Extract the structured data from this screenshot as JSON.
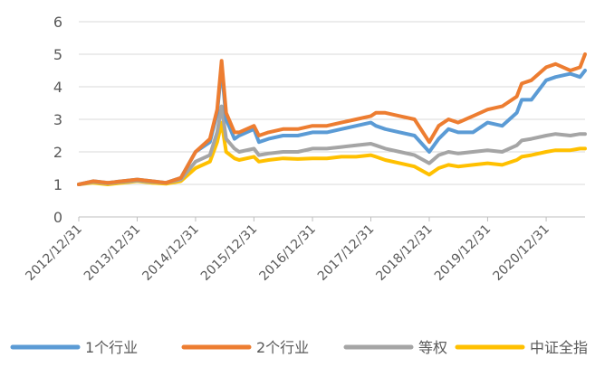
{
  "chart_data": {
    "type": "line",
    "title": "",
    "xlabel": "",
    "ylabel": "",
    "ylim": [
      0,
      6
    ],
    "yticks": [
      0,
      1,
      2,
      3,
      4,
      5,
      6
    ],
    "grid": "horizontal",
    "legend_position": "bottom",
    "x_tick_labels": [
      "2012/12/31",
      "2013/12/31",
      "2014/12/31",
      "2015/12/31",
      "2016/12/31",
      "2017/12/31",
      "2018/12/31",
      "2019/12/31",
      "2020/12/31"
    ],
    "x": [
      "2012/12/31",
      "2013/03/31",
      "2013/06/30",
      "2013/09/30",
      "2013/12/31",
      "2014/03/31",
      "2014/06/30",
      "2014/09/30",
      "2014/12/31",
      "2015/03/31",
      "2015/05/15",
      "2015/06/12",
      "2015/07/10",
      "2015/08/31",
      "2015/09/30",
      "2015/12/31",
      "2016/01/31",
      "2016/03/31",
      "2016/06/30",
      "2016/09/30",
      "2016/12/31",
      "2017/03/31",
      "2017/06/30",
      "2017/09/30",
      "2017/12/31",
      "2018/01/31",
      "2018/03/31",
      "2018/06/30",
      "2018/09/30",
      "2018/12/31",
      "2019/02/28",
      "2019/04/30",
      "2019/06/30",
      "2019/09/30",
      "2019/12/31",
      "2020/03/31",
      "2020/06/30",
      "2020/07/31",
      "2020/09/30",
      "2020/12/31",
      "2021/02/28",
      "2021/05/31",
      "2021/07/31",
      "2021/08/31"
    ],
    "series": [
      {
        "name": "1个行业",
        "color": "#5B9BD5",
        "values": [
          1.0,
          1.1,
          1.05,
          1.1,
          1.15,
          1.1,
          1.05,
          1.2,
          2.0,
          2.3,
          3.2,
          4.6,
          3.0,
          2.4,
          2.5,
          2.7,
          2.3,
          2.4,
          2.5,
          2.5,
          2.6,
          2.6,
          2.7,
          2.8,
          2.9,
          2.8,
          2.7,
          2.6,
          2.5,
          2.0,
          2.4,
          2.7,
          2.6,
          2.6,
          2.9,
          2.8,
          3.2,
          3.6,
          3.6,
          4.2,
          4.3,
          4.4,
          4.3,
          4.5
        ]
      },
      {
        "name": "2个行业",
        "color": "#ED7D31",
        "values": [
          1.0,
          1.1,
          1.05,
          1.1,
          1.15,
          1.1,
          1.05,
          1.2,
          2.0,
          2.4,
          3.3,
          4.8,
          3.2,
          2.6,
          2.6,
          2.8,
          2.5,
          2.6,
          2.7,
          2.7,
          2.8,
          2.8,
          2.9,
          3.0,
          3.1,
          3.2,
          3.2,
          3.1,
          3.0,
          2.3,
          2.8,
          3.0,
          2.9,
          3.1,
          3.3,
          3.4,
          3.7,
          4.1,
          4.2,
          4.6,
          4.7,
          4.5,
          4.6,
          5.0
        ]
      },
      {
        "name": "等权",
        "color": "#A5A5A5",
        "values": [
          1.0,
          1.08,
          1.03,
          1.08,
          1.12,
          1.08,
          1.05,
          1.15,
          1.7,
          1.9,
          2.6,
          3.4,
          2.4,
          2.1,
          2.0,
          2.1,
          1.9,
          1.95,
          2.0,
          2.0,
          2.1,
          2.1,
          2.15,
          2.2,
          2.25,
          2.2,
          2.1,
          2.0,
          1.9,
          1.65,
          1.9,
          2.0,
          1.95,
          2.0,
          2.05,
          2.0,
          2.2,
          2.35,
          2.4,
          2.5,
          2.55,
          2.5,
          2.55,
          2.55
        ]
      },
      {
        "name": "中证全指",
        "color": "#FFC000",
        "values": [
          1.0,
          1.05,
          1.0,
          1.05,
          1.1,
          1.05,
          1.02,
          1.1,
          1.5,
          1.7,
          2.3,
          2.9,
          2.0,
          1.8,
          1.75,
          1.85,
          1.7,
          1.75,
          1.8,
          1.78,
          1.8,
          1.8,
          1.85,
          1.85,
          1.9,
          1.85,
          1.75,
          1.65,
          1.55,
          1.3,
          1.5,
          1.6,
          1.55,
          1.6,
          1.65,
          1.6,
          1.75,
          1.85,
          1.9,
          2.0,
          2.05,
          2.05,
          2.1,
          2.1
        ]
      }
    ]
  }
}
